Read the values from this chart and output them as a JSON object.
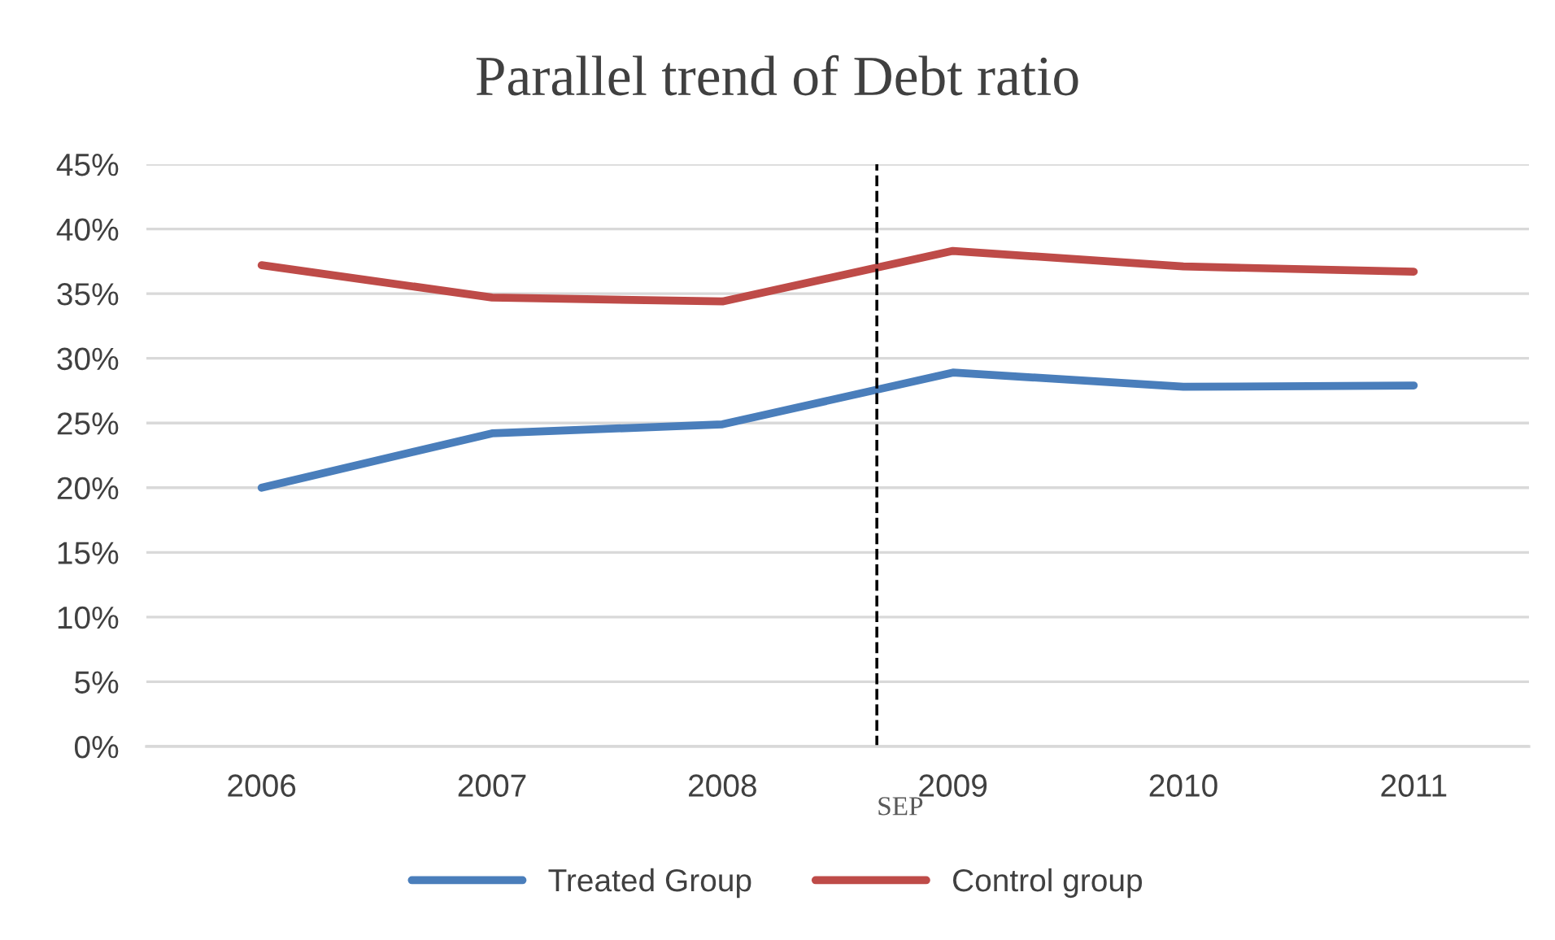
{
  "chart_data": {
    "type": "line",
    "title": "Parallel trend of Debt ratio",
    "x": [
      2006,
      2007,
      2008,
      2009,
      2010,
      2011
    ],
    "xlim": [
      2005.5,
      2011.5
    ],
    "xticks": [
      2006,
      2007,
      2008,
      2009,
      2010,
      2011
    ],
    "ylim": [
      0,
      45
    ],
    "yticks": [
      {
        "value": 0,
        "label": "0%"
      },
      {
        "value": 5,
        "label": "5%"
      },
      {
        "value": 10,
        "label": "10%"
      },
      {
        "value": 15,
        "label": "15%"
      },
      {
        "value": 20,
        "label": "20%"
      },
      {
        "value": 25,
        "label": "25%"
      },
      {
        "value": 30,
        "label": "30%"
      },
      {
        "value": 35,
        "label": "35%"
      },
      {
        "value": 40,
        "label": "40%"
      },
      {
        "value": 45,
        "label": "45%"
      }
    ],
    "series": [
      {
        "name": "Treated Group",
        "color": "#4a7ebb",
        "values": [
          20.0,
          24.2,
          24.9,
          28.9,
          27.8,
          27.9
        ]
      },
      {
        "name": "Control group",
        "color": "#be4b48",
        "values": [
          37.2,
          34.7,
          34.4,
          38.3,
          37.1,
          36.7
        ]
      }
    ],
    "ref_lines": [
      {
        "axis": "x",
        "value": 2008.67,
        "label": "SEP",
        "color": "#000000",
        "line_style": "dashed"
      }
    ],
    "grid": "y",
    "legend": "bottom",
    "marker": "none",
    "line_style": "solid"
  }
}
